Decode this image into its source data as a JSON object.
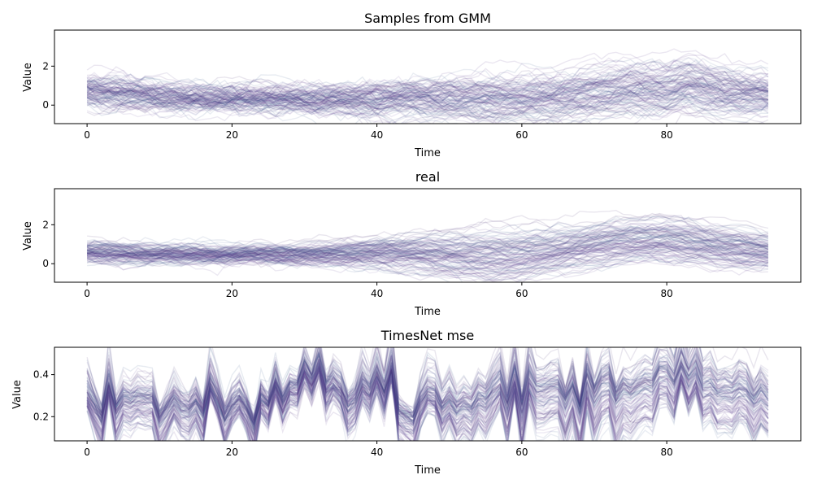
{
  "figure": {
    "background": "#ffffff",
    "line_color": "#3b1f6b",
    "line_alpha": 0.07,
    "palette": [
      "#3b1f6b",
      "#4b2c80",
      "#5a3e8f",
      "#2f4c84",
      "#4a5f92",
      "#6a4fa0"
    ]
  },
  "chart_data": [
    {
      "type": "line",
      "title": "Samples from GMM",
      "xlabel": "Time",
      "ylabel": "Value",
      "xlim": [
        -4.5,
        98.5
      ],
      "ylim": [
        -0.95,
        3.85
      ],
      "xticks": [
        0,
        20,
        40,
        60,
        80
      ],
      "xtick_labels": [
        "0",
        "20",
        "40",
        "60",
        "80"
      ],
      "yticks": [
        0,
        2
      ],
      "ytick_labels": [
        "0",
        "2"
      ],
      "x": {
        "start": 0,
        "end": 94,
        "step": 1
      },
      "n_series": 110,
      "seed": 11,
      "mean_profile": [
        [
          0,
          0.7
        ],
        [
          5,
          0.6
        ],
        [
          10,
          0.45
        ],
        [
          15,
          0.35
        ],
        [
          20,
          0.3
        ],
        [
          25,
          0.3
        ],
        [
          30,
          0.3
        ],
        [
          35,
          0.3
        ],
        [
          40,
          0.25
        ],
        [
          45,
          0.35
        ],
        [
          50,
          0.3
        ],
        [
          55,
          0.25
        ],
        [
          60,
          0.25
        ],
        [
          65,
          0.35
        ],
        [
          70,
          0.65
        ],
        [
          75,
          0.85
        ],
        [
          80,
          0.8
        ],
        [
          83,
          1.1
        ],
        [
          86,
          0.8
        ],
        [
          90,
          0.6
        ],
        [
          94,
          0.55
        ]
      ],
      "spread_profile": [
        [
          0,
          0.35
        ],
        [
          20,
          0.12
        ],
        [
          30,
          0.15
        ],
        [
          40,
          0.35
        ],
        [
          50,
          0.5
        ],
        [
          60,
          0.55
        ],
        [
          70,
          0.6
        ],
        [
          80,
          0.6
        ],
        [
          90,
          0.5
        ],
        [
          94,
          0.45
        ]
      ],
      "noise": 0.18,
      "grid": false
    },
    {
      "type": "line",
      "title": "real",
      "xlabel": "Time",
      "ylabel": "Value",
      "xlim": [
        -4.5,
        98.5
      ],
      "ylim": [
        -0.95,
        3.85
      ],
      "xticks": [
        0,
        20,
        40,
        60,
        80
      ],
      "xtick_labels": [
        "0",
        "20",
        "40",
        "60",
        "80"
      ],
      "yticks": [
        0,
        2
      ],
      "ytick_labels": [
        "0",
        "2"
      ],
      "x": {
        "start": 0,
        "end": 94,
        "step": 1
      },
      "n_series": 110,
      "seed": 23,
      "mean_profile": [
        [
          0,
          0.6
        ],
        [
          10,
          0.45
        ],
        [
          20,
          0.45
        ],
        [
          30,
          0.45
        ],
        [
          35,
          0.5
        ],
        [
          40,
          0.55
        ],
        [
          45,
          0.55
        ],
        [
          50,
          0.45
        ],
        [
          55,
          0.4
        ],
        [
          60,
          0.5
        ],
        [
          65,
          0.7
        ],
        [
          70,
          0.95
        ],
        [
          75,
          1.15
        ],
        [
          80,
          1.2
        ],
        [
          85,
          1.0
        ],
        [
          90,
          0.8
        ],
        [
          94,
          0.65
        ]
      ],
      "spread_profile": [
        [
          0,
          0.25
        ],
        [
          10,
          0.15
        ],
        [
          25,
          0.12
        ],
        [
          35,
          0.25
        ],
        [
          45,
          0.5
        ],
        [
          55,
          0.7
        ],
        [
          65,
          0.6
        ],
        [
          75,
          0.6
        ],
        [
          85,
          0.55
        ],
        [
          94,
          0.45
        ]
      ],
      "noise": 0.12,
      "grid": false
    },
    {
      "type": "line",
      "title": "TimesNet mse",
      "xlabel": "Time",
      "ylabel": "Value",
      "xlim": [
        -4.5,
        98.5
      ],
      "ylim": [
        0.085,
        0.53
      ],
      "xticks": [
        0,
        20,
        40,
        60,
        80
      ],
      "xtick_labels": [
        "0",
        "20",
        "40",
        "60",
        "80"
      ],
      "yticks": [
        0.2,
        0.4
      ],
      "ytick_labels": [
        "0.2",
        "0.4"
      ],
      "x": {
        "start": 0,
        "end": 94,
        "step": 1
      },
      "n_series": 110,
      "seed": 37,
      "mean_profile": [
        [
          0,
          0.25
        ],
        [
          10,
          0.27
        ],
        [
          20,
          0.27
        ],
        [
          25,
          0.28
        ],
        [
          28,
          0.33
        ],
        [
          30,
          0.36
        ],
        [
          33,
          0.36
        ],
        [
          35,
          0.3
        ],
        [
          40,
          0.33
        ],
        [
          43,
          0.27
        ],
        [
          50,
          0.25
        ],
        [
          55,
          0.3
        ],
        [
          60,
          0.3
        ],
        [
          63,
          0.34
        ],
        [
          70,
          0.34
        ],
        [
          75,
          0.33
        ],
        [
          80,
          0.35
        ],
        [
          85,
          0.33
        ],
        [
          90,
          0.33
        ],
        [
          94,
          0.27
        ]
      ],
      "spread_profile": [
        [
          0,
          0.05
        ],
        [
          10,
          0.05
        ],
        [
          28,
          0.03
        ],
        [
          33,
          0.04
        ],
        [
          43,
          0.05
        ],
        [
          50,
          0.06
        ],
        [
          60,
          0.07
        ],
        [
          70,
          0.08
        ],
        [
          80,
          0.08
        ],
        [
          94,
          0.07
        ]
      ],
      "noise": 0.015,
      "jagged": 0.06,
      "grid": false
    }
  ]
}
